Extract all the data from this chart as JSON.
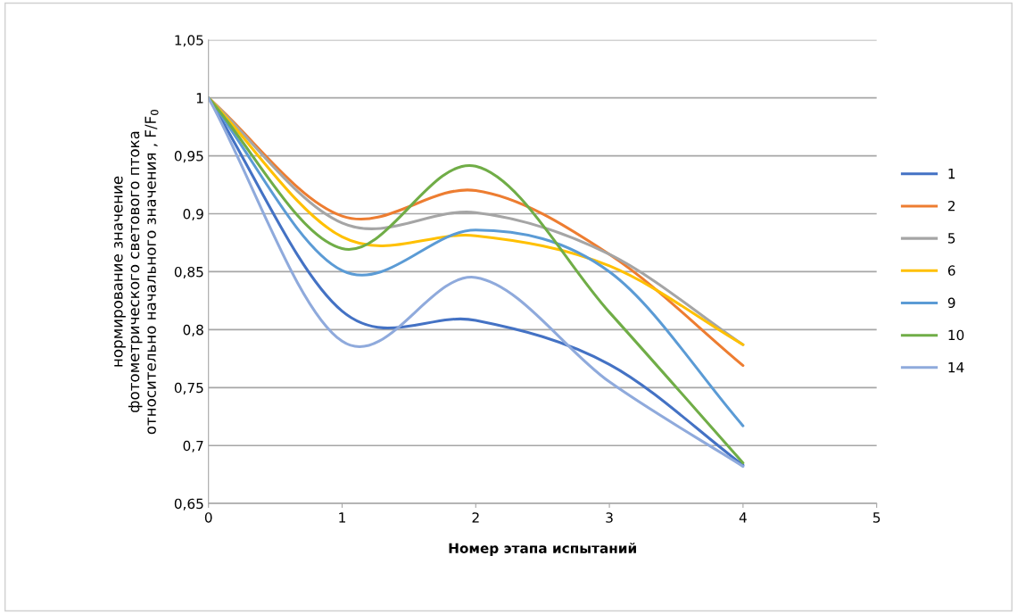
{
  "chart_data": {
    "type": "line",
    "xlabel": "Номер этапа испытаний",
    "ylabel": "нормирование значение\nфотометрического светового птока\nотносительно начального значения , F/F$_{0}$",
    "x": [
      0,
      1,
      2,
      3,
      4
    ],
    "series": [
      {
        "name": "1",
        "color": "#4472c4",
        "values": [
          1,
          0.816,
          0.808,
          0.77,
          0.683
        ]
      },
      {
        "name": "2",
        "color": "#ed7d31",
        "values": [
          1,
          0.898,
          0.92,
          0.865,
          0.769
        ]
      },
      {
        "name": "5",
        "color": "#a5a5a5",
        "values": [
          1,
          0.892,
          0.901,
          0.865,
          0.787
        ]
      },
      {
        "name": "6",
        "color": "#ffc000",
        "values": [
          1,
          0.88,
          0.881,
          0.855,
          0.787
        ]
      },
      {
        "name": "9",
        "color": "#5b9bd5",
        "values": [
          1,
          0.851,
          0.886,
          0.85,
          0.717
        ]
      },
      {
        "name": "10",
        "color": "#70ad47",
        "values": [
          1,
          0.87,
          0.941,
          0.815,
          0.685
        ]
      },
      {
        "name": "14",
        "color": "#8faadc",
        "values": [
          1,
          0.79,
          0.845,
          0.755,
          0.682
        ]
      }
    ],
    "xlim": [
      0,
      5
    ],
    "xticks": [
      0,
      1,
      2,
      3,
      4,
      5
    ],
    "ylim": [
      0.65,
      1.05
    ],
    "yticks": [
      {
        "value": 0.65,
        "label": "0,65"
      },
      {
        "value": 0.7,
        "label": "0,7"
      },
      {
        "value": 0.75,
        "label": "0,75"
      },
      {
        "value": 0.8,
        "label": "0,8"
      },
      {
        "value": 0.85,
        "label": "0,85"
      },
      {
        "value": 0.9,
        "label": "0,9"
      },
      {
        "value": 0.95,
        "label": "0,95"
      },
      {
        "value": 1,
        "label": "1"
      },
      {
        "value": 1.05,
        "label": "1,05"
      }
    ],
    "grid": "y",
    "legend": "right",
    "marker": "none",
    "line_style": "solid"
  }
}
